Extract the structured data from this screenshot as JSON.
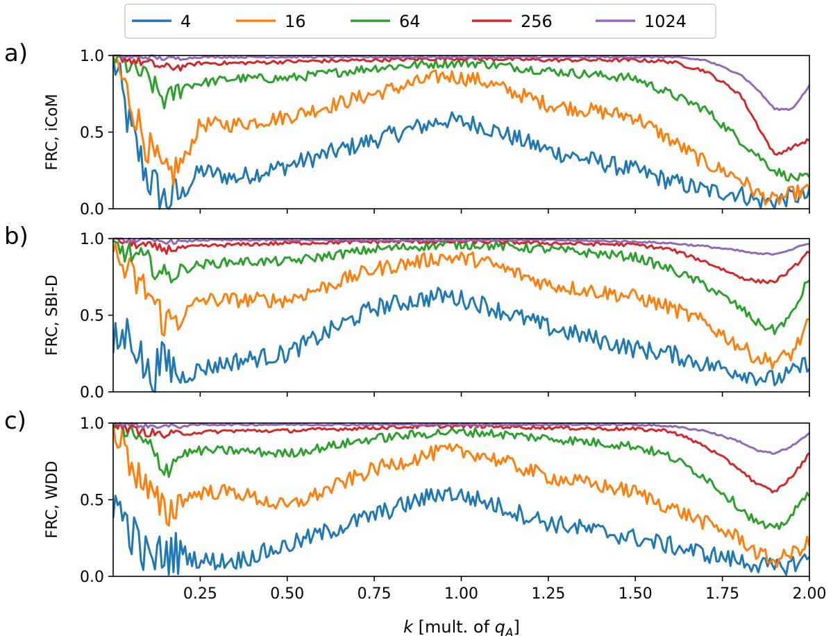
{
  "chart_data": {
    "type": "line",
    "legend": {
      "placement": "top-center",
      "entries": [
        "4",
        "16",
        "64",
        "256",
        "1024"
      ]
    },
    "series_colors": {
      "4": "#1f77b4",
      "16": "#ff7f0e",
      "64": "#2ca02c",
      "256": "#d62728",
      "1024": "#9467bd"
    },
    "xlabel_parts": {
      "k": "k",
      "mid": " [mult. of ",
      "q": "q",
      "sub": "A",
      "end": "]"
    },
    "xlim": [
      0.0,
      2.0
    ],
    "ylim": [
      0.0,
      1.0
    ],
    "xticks": [
      "0.25",
      "0.50",
      "0.75",
      "1.00",
      "1.25",
      "1.50",
      "1.75",
      "2.00"
    ],
    "xtick_values": [
      0.25,
      0.5,
      0.75,
      1.0,
      1.25,
      1.5,
      1.75,
      2.0
    ],
    "yticks": [
      "0.0",
      "0.5",
      "1.0"
    ],
    "ytick_values": [
      0.0,
      0.5,
      1.0
    ],
    "grid": false,
    "panels": [
      {
        "letter": "a)",
        "ylabel": "FRC, iCoM",
        "x": [
          0.0,
          0.05,
          0.1,
          0.15,
          0.2,
          0.25,
          0.35,
          0.5,
          0.75,
          0.95,
          1.05,
          1.25,
          1.5,
          1.6,
          1.7,
          1.8,
          1.85,
          1.9,
          1.95,
          2.0
        ],
        "series": [
          {
            "name": "4",
            "values": [
              1.0,
              0.5,
              0.2,
              0.05,
              0.1,
              0.25,
              0.2,
              0.28,
              0.45,
              0.58,
              0.55,
              0.38,
              0.25,
              0.18,
              0.12,
              0.1,
              0.05,
              0.05,
              0.08,
              0.08
            ]
          },
          {
            "name": "16",
            "values": [
              1.0,
              0.7,
              0.4,
              0.2,
              0.3,
              0.55,
              0.55,
              0.6,
              0.75,
              0.87,
              0.84,
              0.68,
              0.6,
              0.45,
              0.3,
              0.2,
              0.1,
              0.05,
              0.1,
              0.12
            ]
          },
          {
            "name": "64",
            "values": [
              1.0,
              0.92,
              0.85,
              0.7,
              0.8,
              0.82,
              0.85,
              0.85,
              0.92,
              0.95,
              0.95,
              0.9,
              0.85,
              0.75,
              0.65,
              0.45,
              0.35,
              0.25,
              0.2,
              0.2
            ]
          },
          {
            "name": "256",
            "values": [
              1.0,
              0.97,
              0.95,
              0.92,
              0.93,
              0.95,
              0.95,
              0.96,
              0.97,
              0.98,
              0.98,
              0.97,
              0.97,
              0.96,
              0.9,
              0.75,
              0.55,
              0.35,
              0.4,
              0.45
            ]
          },
          {
            "name": "1024",
            "values": [
              1.0,
              0.99,
              0.99,
              0.98,
              0.98,
              0.99,
              0.99,
              0.99,
              0.99,
              0.99,
              0.99,
              0.99,
              0.99,
              0.99,
              0.97,
              0.88,
              0.78,
              0.65,
              0.65,
              0.8
            ]
          }
        ]
      },
      {
        "letter": "b)",
        "ylabel": "FRC, SBI-D",
        "x": [
          0.0,
          0.05,
          0.1,
          0.15,
          0.2,
          0.25,
          0.35,
          0.5,
          0.75,
          0.95,
          1.05,
          1.25,
          1.5,
          1.6,
          1.7,
          1.8,
          1.85,
          1.9,
          1.95,
          2.0
        ],
        "series": [
          {
            "name": "4",
            "values": [
              0.3,
              0.4,
              0.1,
              0.2,
              0.1,
              0.15,
              0.2,
              0.25,
              0.55,
              0.63,
              0.58,
              0.42,
              0.28,
              0.25,
              0.18,
              0.13,
              0.1,
              0.08,
              0.12,
              0.2
            ]
          },
          {
            "name": "16",
            "values": [
              0.9,
              0.75,
              0.65,
              0.45,
              0.5,
              0.6,
              0.6,
              0.6,
              0.8,
              0.88,
              0.86,
              0.7,
              0.62,
              0.55,
              0.45,
              0.3,
              0.22,
              0.2,
              0.25,
              0.45
            ]
          },
          {
            "name": "64",
            "values": [
              0.95,
              0.9,
              0.85,
              0.75,
              0.8,
              0.83,
              0.85,
              0.85,
              0.93,
              0.96,
              0.96,
              0.93,
              0.88,
              0.8,
              0.7,
              0.55,
              0.45,
              0.4,
              0.5,
              0.75
            ]
          },
          {
            "name": "256",
            "values": [
              1.0,
              0.97,
              0.95,
              0.93,
              0.94,
              0.95,
              0.96,
              0.97,
              0.98,
              0.98,
              0.98,
              0.97,
              0.96,
              0.93,
              0.85,
              0.75,
              0.72,
              0.72,
              0.8,
              0.92
            ]
          },
          {
            "name": "1024",
            "values": [
              1.0,
              0.99,
              0.99,
              0.98,
              0.98,
              0.99,
              0.99,
              0.99,
              0.99,
              0.99,
              0.99,
              0.99,
              0.98,
              0.97,
              0.95,
              0.92,
              0.9,
              0.9,
              0.93,
              0.97
            ]
          }
        ]
      },
      {
        "letter": "c)",
        "ylabel": "FRC, WDD",
        "x": [
          0.0,
          0.05,
          0.1,
          0.15,
          0.2,
          0.25,
          0.35,
          0.5,
          0.75,
          0.95,
          1.05,
          1.25,
          1.5,
          1.6,
          1.7,
          1.8,
          1.85,
          1.9,
          1.95,
          2.0
        ],
        "series": [
          {
            "name": "4",
            "values": [
              0.5,
              0.3,
              0.1,
              0.15,
              0.15,
              0.1,
              0.1,
              0.2,
              0.4,
              0.55,
              0.5,
              0.35,
              0.25,
              0.2,
              0.15,
              0.1,
              0.08,
              0.05,
              0.08,
              0.12
            ]
          },
          {
            "name": "16",
            "values": [
              1.0,
              0.75,
              0.55,
              0.4,
              0.5,
              0.55,
              0.55,
              0.45,
              0.7,
              0.82,
              0.8,
              0.65,
              0.55,
              0.45,
              0.35,
              0.25,
              0.15,
              0.1,
              0.15,
              0.22
            ]
          },
          {
            "name": "64",
            "values": [
              1.0,
              0.92,
              0.85,
              0.7,
              0.8,
              0.82,
              0.82,
              0.8,
              0.9,
              0.94,
              0.94,
              0.9,
              0.85,
              0.78,
              0.65,
              0.45,
              0.35,
              0.3,
              0.4,
              0.55
            ]
          },
          {
            "name": "256",
            "values": [
              1.0,
              0.96,
              0.94,
              0.92,
              0.93,
              0.94,
              0.95,
              0.95,
              0.97,
              0.98,
              0.98,
              0.97,
              0.96,
              0.95,
              0.85,
              0.7,
              0.6,
              0.55,
              0.65,
              0.8
            ]
          },
          {
            "name": "1024",
            "values": [
              1.0,
              0.99,
              0.98,
              0.98,
              0.98,
              0.99,
              0.99,
              0.99,
              0.99,
              0.99,
              0.99,
              0.99,
              0.99,
              0.98,
              0.95,
              0.88,
              0.82,
              0.8,
              0.85,
              0.93
            ]
          }
        ]
      }
    ]
  }
}
